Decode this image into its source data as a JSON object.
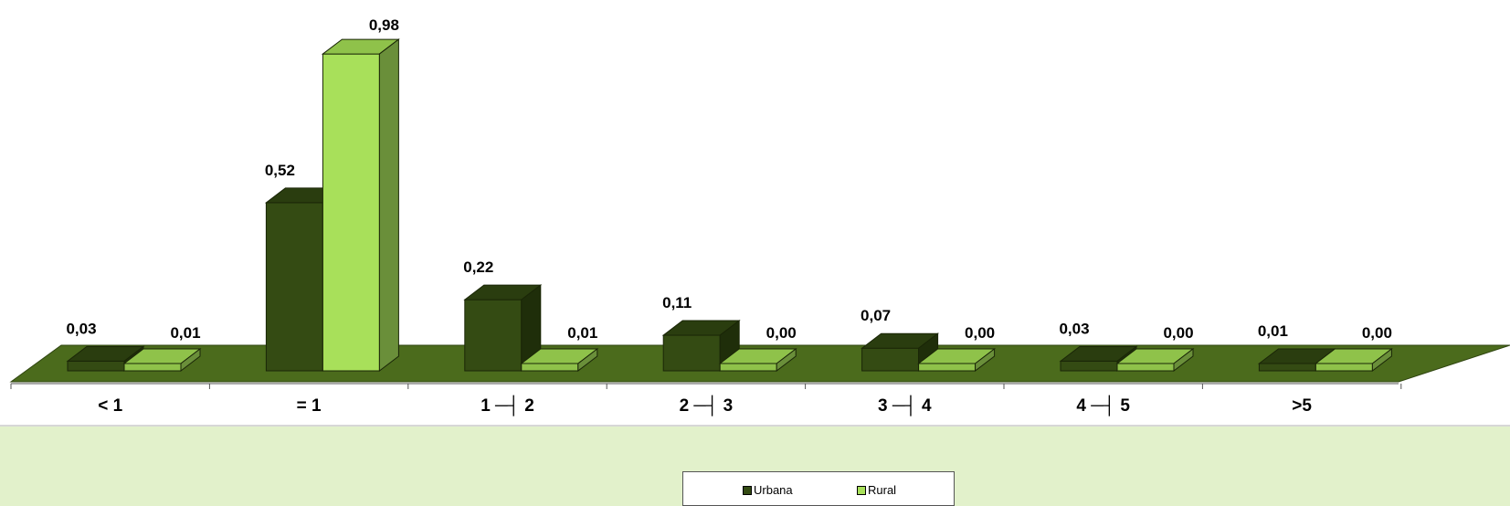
{
  "chart_data": {
    "type": "bar",
    "categories": [
      "< 1",
      "= 1",
      "1 ─┤ 2",
      "2 ─┤ 3",
      "3 ─┤ 4",
      "4 ─┤ 5",
      ">5"
    ],
    "series": [
      {
        "name": "Urbana",
        "values": [
          0.03,
          0.52,
          0.22,
          0.11,
          0.07,
          0.03,
          0.01
        ],
        "labels": [
          "0,03",
          "0,52",
          "0,22",
          "0,11",
          "0,07",
          "0,03",
          "0,01"
        ],
        "color": "#344b13"
      },
      {
        "name": "Rural",
        "values": [
          0.01,
          0.98,
          0.01,
          0.0,
          0.0,
          0.0,
          0.0
        ],
        "labels": [
          "0,01",
          "0,98",
          "0,01",
          "0,00",
          "0,00",
          "0,00",
          "0,00"
        ],
        "color": "#a8e05a"
      }
    ],
    "ylim": [
      0,
      1
    ],
    "style": "3d-column",
    "floor_color": "#4b6b1c",
    "legend_position": "bottom"
  },
  "legend": {
    "urbana_label": "Urbana",
    "rural_label": "Rural"
  }
}
